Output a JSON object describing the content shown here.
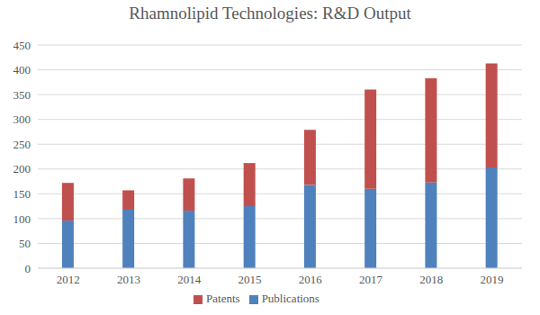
{
  "chart_data": {
    "type": "bar",
    "title": "Rhamnolipid Technologies: R&D Output",
    "categories": [
      "2012",
      "2013",
      "2014",
      "2015",
      "2016",
      "2017",
      "2018",
      "2019"
    ],
    "series": [
      {
        "name": "Publications",
        "color": "#4f81bd",
        "values": [
          96,
          118,
          116,
          125,
          168,
          160,
          173,
          203
        ]
      },
      {
        "name": "Patents",
        "color": "#c0504d",
        "values": [
          76,
          39,
          65,
          87,
          111,
          200,
          210,
          210
        ]
      }
    ],
    "ylim": [
      0,
      450
    ],
    "yticks": [
      0,
      50,
      100,
      150,
      200,
      250,
      300,
      350,
      400,
      450
    ],
    "stacked": true,
    "grid": true,
    "legend": "bottom"
  }
}
